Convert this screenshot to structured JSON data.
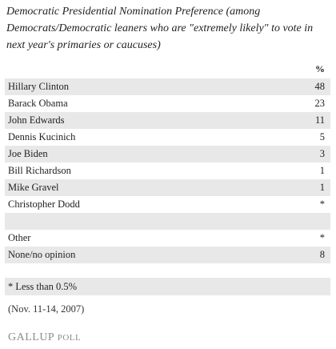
{
  "title": "Democratic Presidential Nomination Preference (among Democrats/Democratic leaners who are \"extremely likely\" to vote in next year's primaries or caucuses)",
  "table": {
    "header": "%",
    "candidates": [
      [
        "Hillary Clinton",
        "48"
      ],
      [
        "Barack Obama",
        "23"
      ],
      [
        "John Edwards",
        "11"
      ],
      [
        "Dennis Kucinich",
        "5"
      ],
      [
        "Joe Biden",
        "3"
      ],
      [
        "Bill Richardson",
        "1"
      ],
      [
        "Mike Gravel",
        "1"
      ],
      [
        "Christopher Dodd",
        "*"
      ]
    ],
    "other_rows": [
      [
        "Other",
        "*"
      ],
      [
        "None/no opinion",
        "8"
      ]
    ]
  },
  "footnote": "* Less than 0.5%",
  "source": "(Nov. 11-14, 2007)",
  "logo": {
    "brand": "GALLUP",
    "suffix": "POLL"
  }
}
